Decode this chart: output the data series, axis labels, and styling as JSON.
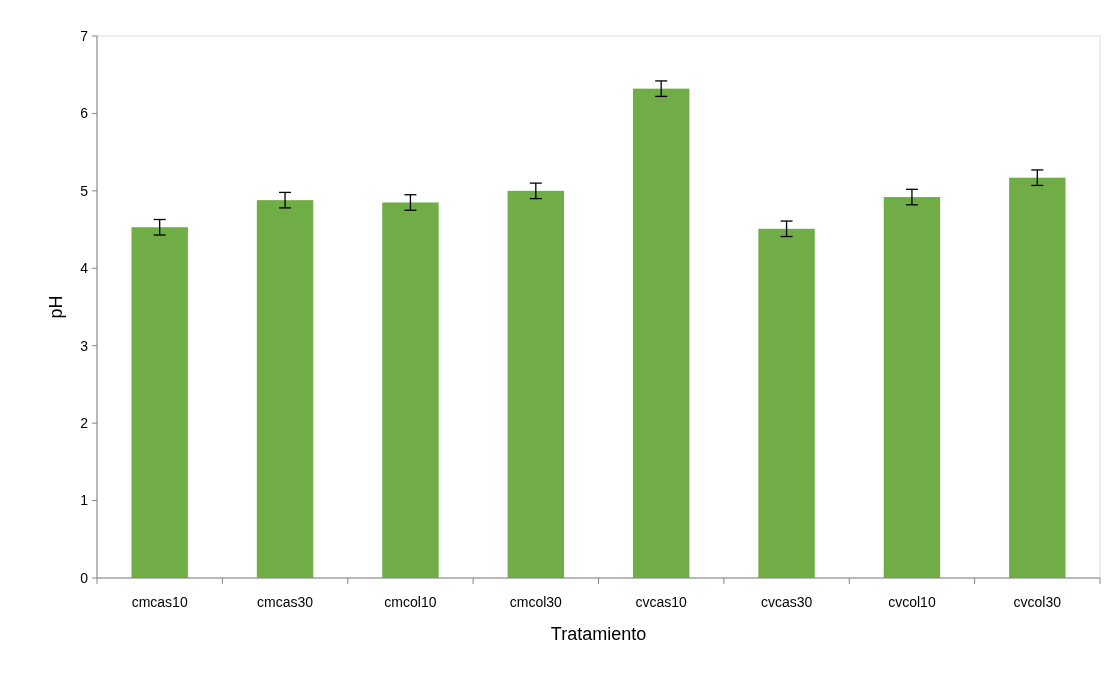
{
  "chart_data": {
    "type": "bar",
    "xlabel": "Tratamiento",
    "ylabel": "pH",
    "categories": [
      "cmcas10",
      "cmcas30",
      "cmcol10",
      "cmcol30",
      "cvcas10",
      "cvcas30",
      "cvcol10",
      "cvcol30"
    ],
    "values": [
      4.53,
      4.88,
      4.85,
      5.0,
      6.32,
      4.51,
      4.92,
      5.17
    ],
    "errors": [
      0.1,
      0.1,
      0.1,
      0.1,
      0.1,
      0.1,
      0.1,
      0.1
    ],
    "color": "#70ad47",
    "ylim": [
      0,
      7
    ],
    "yticks": [
      0,
      1,
      2,
      3,
      4,
      5,
      6,
      7
    ],
    "grid": false
  }
}
